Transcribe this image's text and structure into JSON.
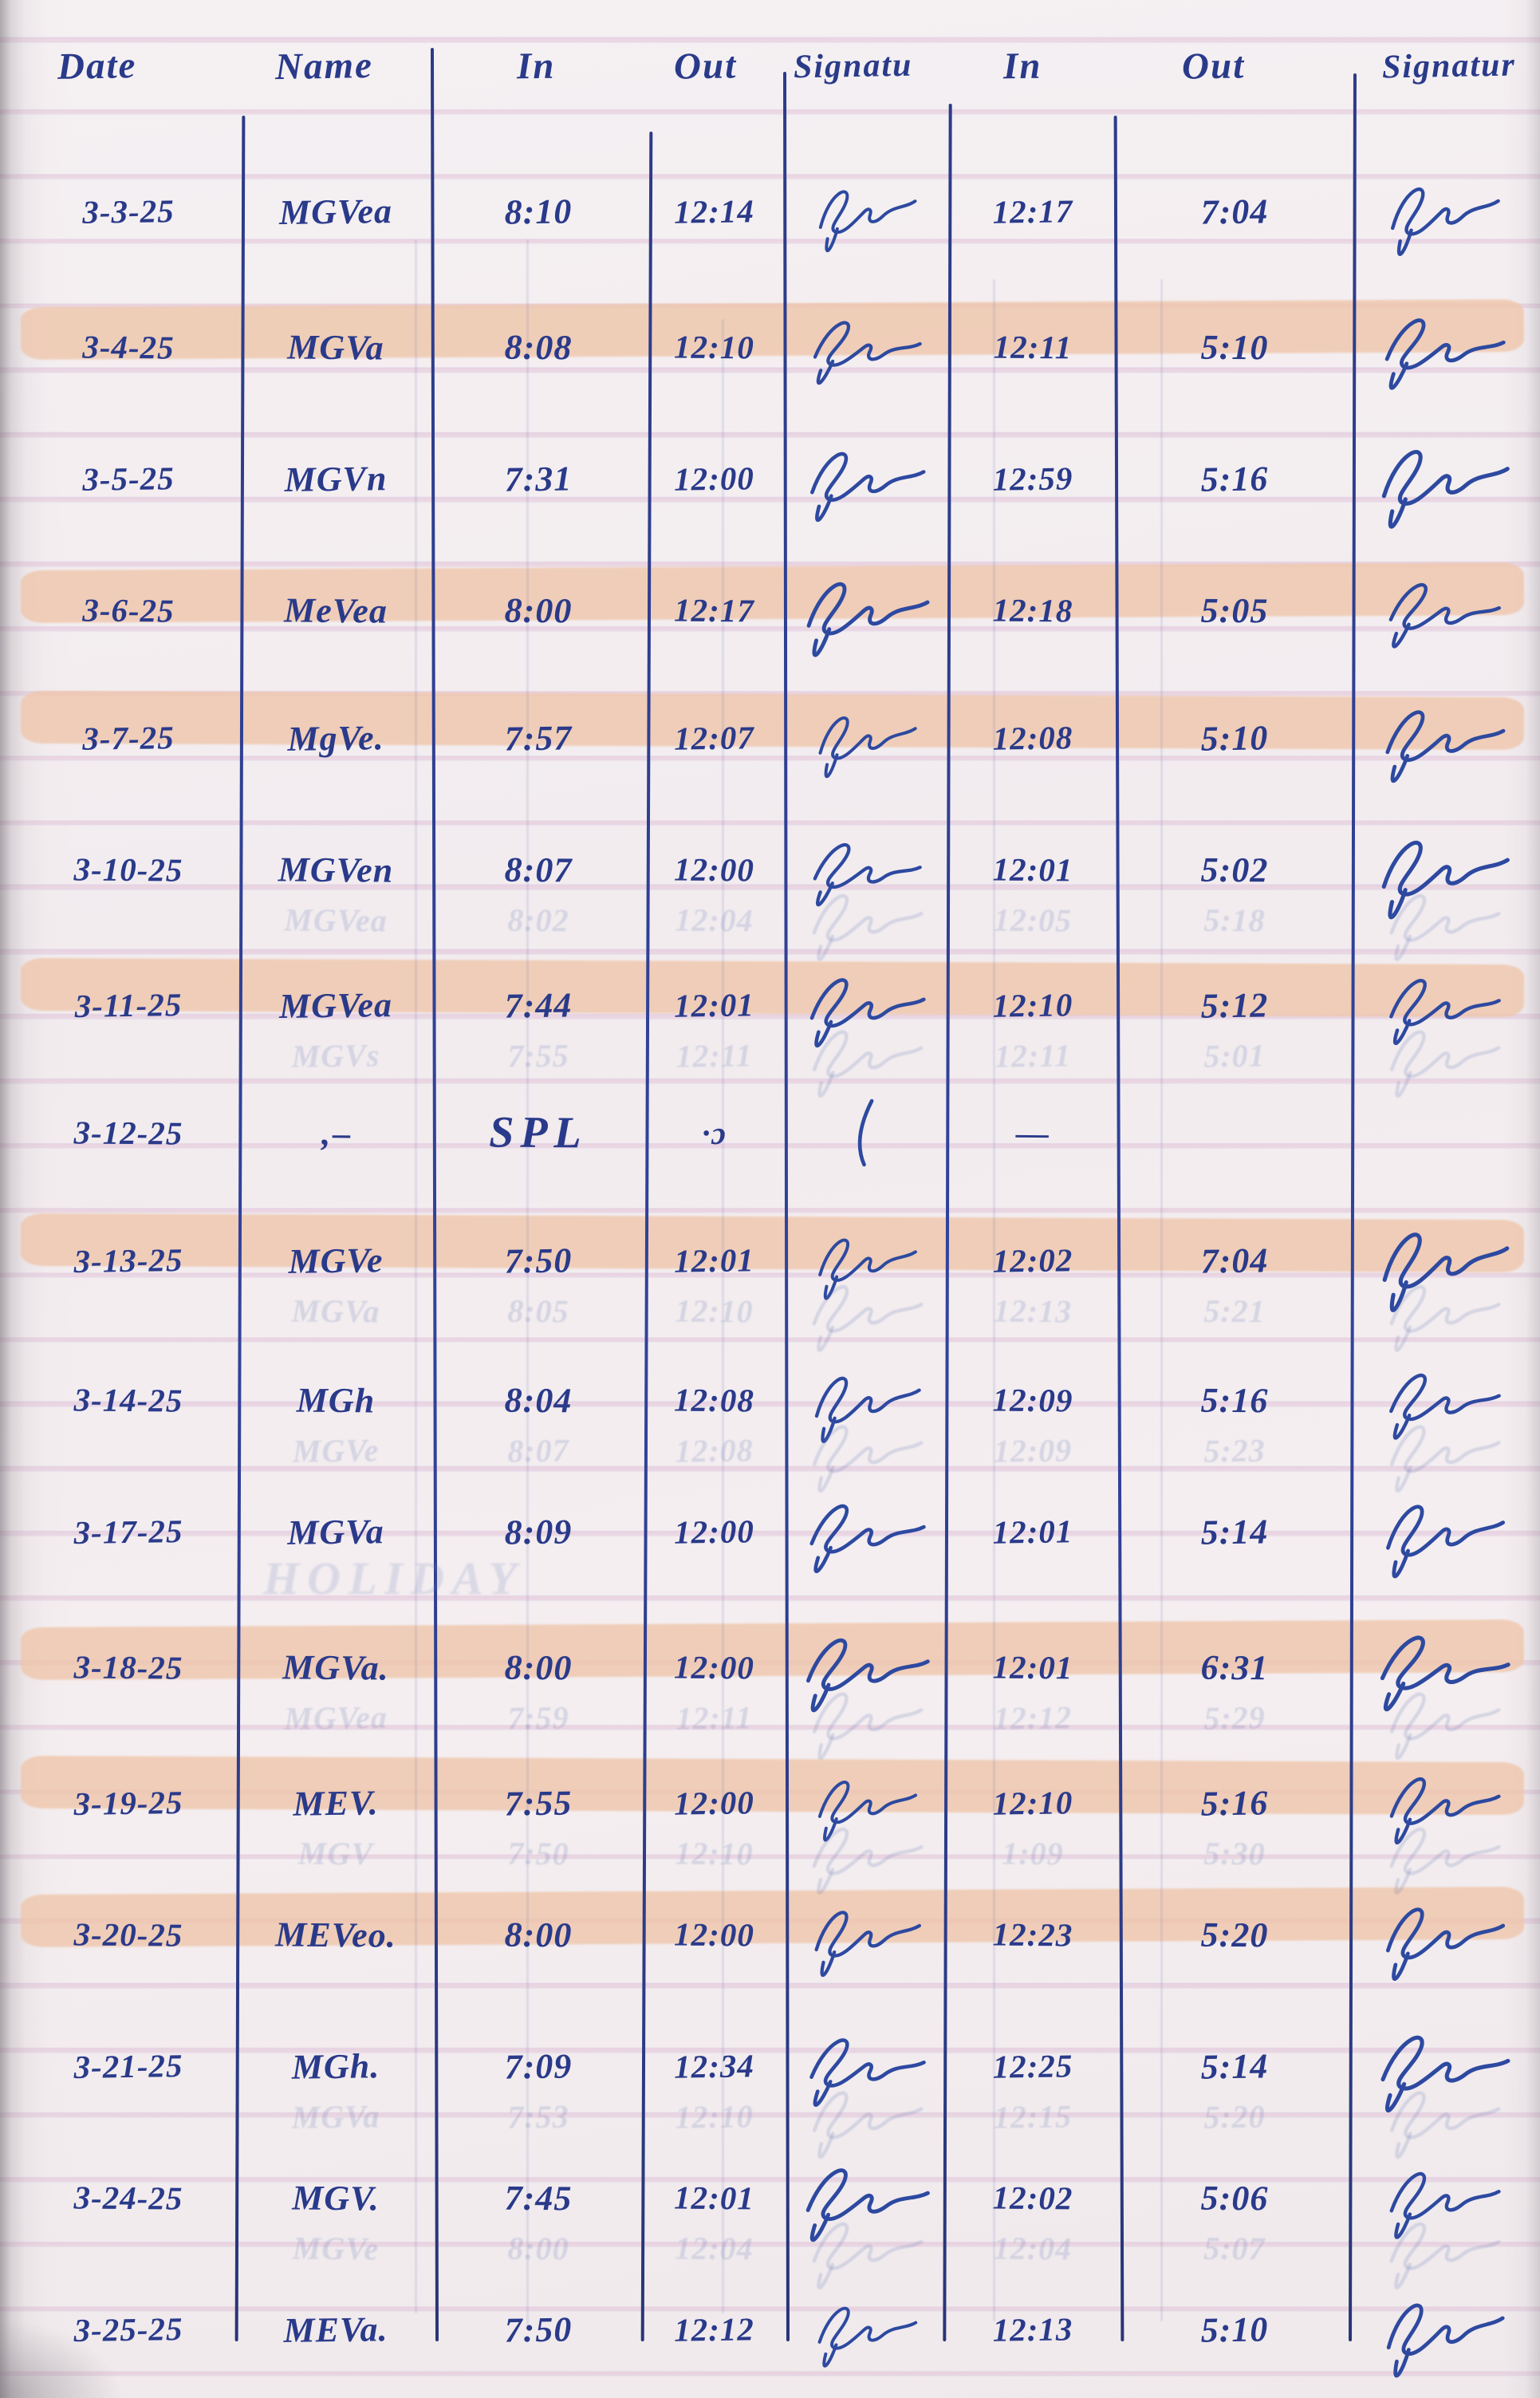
{
  "document": {
    "type": "handwritten timesheet page",
    "ink_color": "#2a3a8a",
    "signature_color": "#2d49a0",
    "highlight_color": "#efc6ab",
    "rule_line_color": "#c8a8d6"
  },
  "header": {
    "labels": [
      "Date",
      "Name",
      "In",
      "Out",
      "Signatu",
      "In",
      "Out",
      "Signatur"
    ]
  },
  "rows": [
    {
      "date": "3-3-25",
      "name": "MGVea",
      "in1": "8:10",
      "out1": "12:14",
      "sig1": "full",
      "in2": "12:17",
      "out2": "7:04",
      "sig2": "full",
      "highlighted": false
    },
    {
      "date": "3-4-25",
      "name": "MGVa",
      "in1": "8:08",
      "out1": "12:10",
      "sig1": "full",
      "in2": "12:11",
      "out2": "5:10",
      "sig2": "full",
      "highlighted": true
    },
    {
      "date": "3-5-25",
      "name": "MGVn",
      "in1": "7:31",
      "out1": "12:00",
      "sig1": "full",
      "in2": "12:59",
      "out2": "5:16",
      "sig2": "full",
      "highlighted": false
    },
    {
      "date": "3-6-25",
      "name": "MeVea",
      "in1": "8:00",
      "out1": "12:17",
      "sig1": "full",
      "in2": "12:18",
      "out2": "5:05",
      "sig2": "full",
      "highlighted": true
    },
    {
      "date": "3-7-25",
      "name": "MgVe.",
      "in1": "7:57",
      "out1": "12:07",
      "sig1": "full",
      "in2": "12:08",
      "out2": "5:10",
      "sig2": "full",
      "highlighted": true
    },
    {
      "date": "3-10-25",
      "name": "MGVen",
      "in1": "8:07",
      "out1": "12:00",
      "sig1": "full",
      "in2": "12:01",
      "out2": "5:02",
      "sig2": "full",
      "highlighted": false
    },
    {
      "date": "3-11-25",
      "name": "MGVea",
      "in1": "7:44",
      "out1": "12:01",
      "sig1": "full",
      "in2": "12:10",
      "out2": "5:12",
      "sig2": "full",
      "highlighted": true
    },
    {
      "date": "3-12-25",
      "name": "‚–",
      "in1": "SPL",
      "out1": "·ɔ",
      "sig1": "jstroke",
      "in2": "—",
      "out2": "",
      "sig2": "",
      "highlighted": false
    },
    {
      "date": "3-13-25",
      "name": "MGVe",
      "in1": "7:50",
      "out1": "12:01",
      "sig1": "full",
      "in2": "12:02",
      "out2": "7:04",
      "sig2": "full",
      "highlighted": true
    },
    {
      "date": "3-14-25",
      "name": "MGh",
      "in1": "8:04",
      "out1": "12:08",
      "sig1": "full",
      "in2": "12:09",
      "out2": "5:16",
      "sig2": "full",
      "highlighted": false
    },
    {
      "date": "3-17-25",
      "name": "MGVa",
      "in1": "8:09",
      "out1": "12:00",
      "sig1": "full",
      "in2": "12:01",
      "out2": "5:14",
      "sig2": "full",
      "highlighted": false
    },
    {
      "date": "3-18-25",
      "name": "MGVa.",
      "in1": "8:00",
      "out1": "12:00",
      "sig1": "full",
      "in2": "12:01",
      "out2": "6:31",
      "sig2": "full",
      "highlighted": true
    },
    {
      "date": "3-19-25",
      "name": "MEV.",
      "in1": "7:55",
      "out1": "12:00",
      "sig1": "full",
      "in2": "12:10",
      "out2": "5:16",
      "sig2": "full",
      "highlighted": true
    },
    {
      "date": "3-20-25",
      "name": "MEVeo.",
      "in1": "8:00",
      "out1": "12:00",
      "sig1": "full",
      "in2": "12:23",
      "out2": "5:20",
      "sig2": "full",
      "highlighted": true
    },
    {
      "date": "3-21-25",
      "name": "MGh.",
      "in1": "7:09",
      "out1": "12:34",
      "sig1": "full",
      "in2": "12:25",
      "out2": "5:14",
      "sig2": "full",
      "highlighted": false
    },
    {
      "date": "3-24-25",
      "name": "MGV.",
      "in1": "7:45",
      "out1": "12:01",
      "sig1": "full",
      "in2": "12:02",
      "out2": "5:06",
      "sig2": "full",
      "highlighted": false
    },
    {
      "date": "3-25-25",
      "name": "MEVa.",
      "in1": "7:50",
      "out1": "12:12",
      "sig1": "full",
      "in2": "12:13",
      "out2": "5:10",
      "sig2": "full",
      "highlighted": false
    }
  ],
  "ghost_rows": [
    {
      "after_row": 6,
      "name": "MGVea",
      "in1": "8:02",
      "out1": "12:04",
      "in2": "12:05",
      "out2": "5:18"
    },
    {
      "after_row": 7,
      "name": "MGVs",
      "in1": "7:55",
      "out1": "12:11",
      "in2": "12:11",
      "out2": "5:01"
    },
    {
      "after_row": 9,
      "name": "MGVa",
      "in1": "8:05",
      "out1": "12:10",
      "in2": "12:13",
      "out2": "5:21"
    },
    {
      "after_row": 10,
      "name": "MGVe",
      "in1": "8:07",
      "out1": "12:08",
      "in2": "12:09",
      "out2": "5:23"
    },
    {
      "after_row": 11,
      "text": "HOLIDAY"
    },
    {
      "after_row": 12,
      "name": "MGVea",
      "in1": "7:59",
      "out1": "12:11",
      "in2": "12:12",
      "out2": "5:29"
    },
    {
      "after_row": 13,
      "name": "MGV",
      "in1": "7:50",
      "out1": "12:10",
      "in2": "1:09",
      "out2": "5:30"
    },
    {
      "after_row": 15,
      "name": "MGVa",
      "in1": "7:53",
      "out1": "12:10",
      "in2": "12:15",
      "out2": "5:20"
    },
    {
      "after_row": 16,
      "name": "MGVe",
      "in1": "8:00",
      "out1": "12:04",
      "in2": "12:04",
      "out2": "5:07"
    }
  ]
}
